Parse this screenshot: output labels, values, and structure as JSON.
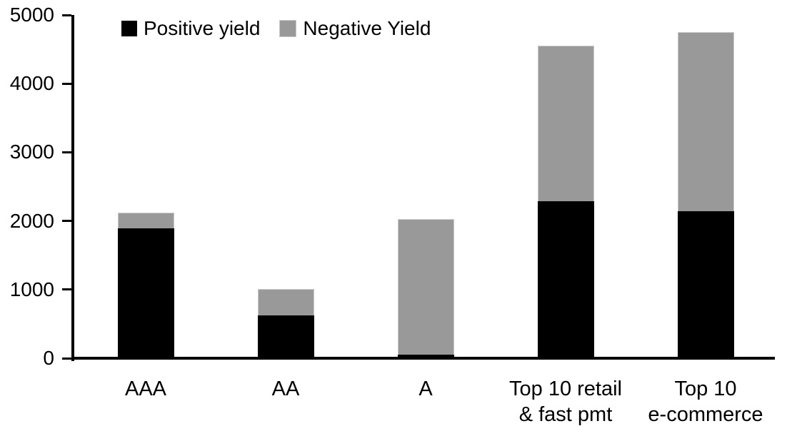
{
  "chart_data": {
    "type": "bar",
    "stacked": true,
    "title": "",
    "xlabel": "",
    "ylabel": "",
    "categories": [
      "AAA",
      "AA",
      "A",
      "Top 10 retail\n& fast pmt",
      "Top 10\ne-commerce"
    ],
    "series": [
      {
        "name": "Positive yield",
        "color": "#000000",
        "values": [
          1890,
          620,
          50,
          2290,
          2140
        ]
      },
      {
        "name": "Negative Yield",
        "color": "#999999",
        "values": [
          230,
          390,
          1980,
          2260,
          2610
        ]
      }
    ],
    "ylim": [
      0,
      5000
    ],
    "yticks": [
      0,
      1000,
      2000,
      3000,
      4000,
      5000
    ],
    "grid": false,
    "legend_position": "top",
    "axis_color": "#000000"
  }
}
